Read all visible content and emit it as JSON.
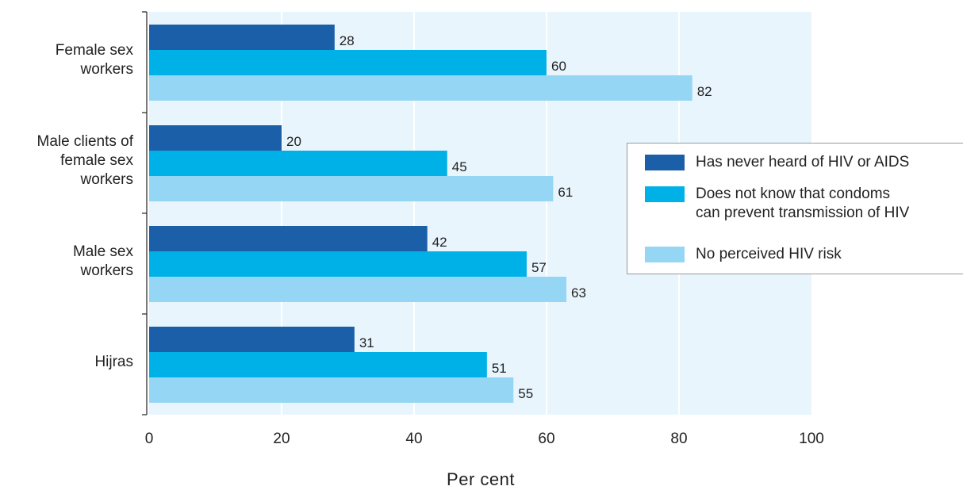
{
  "chart_data": {
    "type": "bar",
    "orientation": "horizontal",
    "categories": [
      "Female sex\nworkers",
      "Male clients of\nfemale sex\nworkers",
      "Male sex\nworkers",
      "Hijras"
    ],
    "series": [
      {
        "name": "Has never heard of HIV or AIDS",
        "values": [
          28,
          20,
          42,
          31
        ],
        "color": "#1b5fa8"
      },
      {
        "name": "Does not know that condoms\ncan prevent transmission of HIV",
        "values": [
          60,
          45,
          57,
          51
        ],
        "color": "#00b1e8"
      },
      {
        "name": "No perceived HIV risk",
        "values": [
          82,
          61,
          63,
          55
        ],
        "color": "#96d6f5"
      }
    ],
    "xlabel": "Per cent",
    "ylabel": "",
    "xlim": [
      0,
      100
    ],
    "xticks": [
      "0",
      "20",
      "40",
      "60",
      "80",
      "100"
    ],
    "grid": true,
    "legend_position": "right",
    "plot_background": "#e8f5fd"
  }
}
